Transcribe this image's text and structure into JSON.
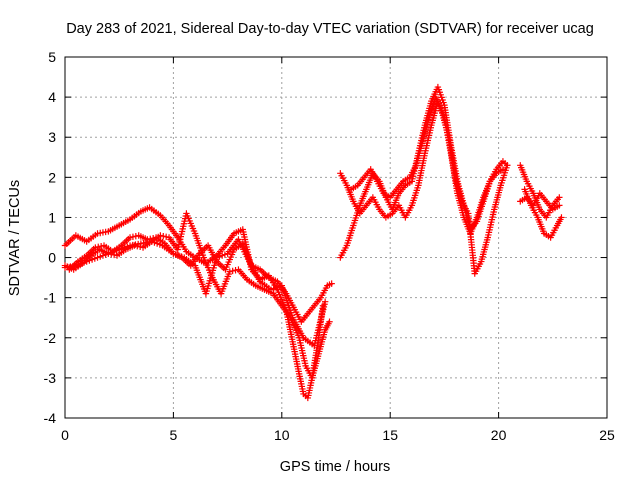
{
  "chart_data": {
    "type": "scatter",
    "title": "Day 283 of 2021, Sidereal Day-to-day VTEC variation (SDTVAR) for receiver ucag",
    "xlabel": "GPS time / hours",
    "ylabel": "SDTVAR / TECUs",
    "xlim": [
      0,
      25
    ],
    "ylim": [
      -4,
      5
    ],
    "xticks": [
      0,
      5,
      10,
      15,
      20,
      25
    ],
    "yticks": [
      -4,
      -3,
      -2,
      -1,
      0,
      1,
      2,
      3,
      4,
      5
    ],
    "grid": true,
    "marker": "plus",
    "color": "#ff0000",
    "series": [
      {
        "x": [
          0.0,
          0.5,
          1.0,
          1.5,
          2.0,
          2.5,
          3.0,
          3.5,
          3.9,
          4.4,
          4.8,
          5.2,
          5.6,
          6.0,
          6.5,
          7.0,
          7.4,
          7.8,
          8.2,
          8.6,
          9.0,
          9.4,
          9.8,
          10.2,
          10.5,
          10.8,
          11.0,
          11.2,
          11.4,
          11.7,
          11.9
        ],
        "y": [
          0.3,
          0.55,
          0.4,
          0.6,
          0.65,
          0.8,
          0.95,
          1.15,
          1.25,
          1.05,
          0.8,
          0.5,
          0.15,
          0.0,
          -0.15,
          0.05,
          0.3,
          0.6,
          0.7,
          -0.3,
          -0.55,
          -0.45,
          -0.8,
          -1.3,
          -2.1,
          -2.9,
          -3.4,
          -3.5,
          -3.0,
          -2.0,
          -1.2
        ]
      },
      {
        "x": [
          0.0,
          0.4,
          0.8,
          1.2,
          1.6,
          2.0,
          2.4,
          2.8,
          3.2,
          3.6,
          4.0,
          4.4,
          4.8,
          5.2,
          5.6,
          6.0,
          6.4,
          6.8,
          7.2,
          7.6,
          8.0,
          8.4,
          8.8,
          9.2,
          9.6,
          10.0,
          10.4,
          10.8,
          11.1,
          11.4,
          11.7,
          12.0,
          12.2
        ],
        "y": [
          -0.2,
          -0.3,
          -0.15,
          0.05,
          0.2,
          0.1,
          0.05,
          0.2,
          0.3,
          0.25,
          0.4,
          0.55,
          0.5,
          0.2,
          1.1,
          0.6,
          0.0,
          -0.5,
          -0.9,
          -0.35,
          -0.3,
          -0.55,
          -0.7,
          -0.8,
          -0.9,
          -1.2,
          -1.5,
          -2.0,
          -2.7,
          -3.0,
          -2.4,
          -1.8,
          -1.6
        ]
      },
      {
        "x": [
          0.2,
          0.6,
          1.0,
          1.4,
          1.8,
          2.2,
          2.6,
          3.0,
          3.4,
          3.8,
          4.2,
          4.6,
          5.0,
          5.4,
          5.8,
          6.2,
          6.6,
          7.0,
          7.4,
          7.8,
          8.2,
          8.6,
          9.0,
          9.4,
          9.8,
          10.2,
          10.6,
          10.9,
          11.2,
          11.5,
          11.8,
          12.1,
          12.3
        ],
        "y": [
          -0.3,
          -0.1,
          0.05,
          0.25,
          0.3,
          0.15,
          0.3,
          0.5,
          0.55,
          0.45,
          0.5,
          0.35,
          0.1,
          0.0,
          -0.2,
          0.1,
          0.3,
          -0.1,
          -0.3,
          0.2,
          0.35,
          -0.2,
          -0.3,
          -0.5,
          -0.6,
          -0.9,
          -1.3,
          -1.6,
          -1.4,
          -1.2,
          -1.0,
          -0.7,
          -0.65
        ]
      },
      {
        "x": [
          0.0,
          0.5,
          1.0,
          1.5,
          2.0,
          2.5,
          3.0,
          3.5,
          4.0,
          4.5,
          5.0,
          5.5,
          6.0,
          6.5,
          7.0,
          7.5,
          8.0,
          8.5,
          9.0,
          9.5,
          10.0,
          10.5,
          11.0,
          11.5,
          12.0
        ],
        "y": [
          -0.25,
          -0.2,
          -0.1,
          0.0,
          0.1,
          0.2,
          0.3,
          0.35,
          0.4,
          0.3,
          0.1,
          0.0,
          -0.2,
          -0.9,
          0.0,
          0.1,
          0.45,
          -0.1,
          -0.6,
          -0.8,
          -0.7,
          -1.5,
          -2.0,
          -2.2,
          -1.1
        ]
      },
      {
        "x": [
          12.7,
          13.0,
          13.3,
          13.6,
          13.9,
          14.2,
          14.5,
          14.8,
          15.1,
          15.4,
          15.7,
          16.0,
          16.3,
          16.6,
          16.9,
          17.2,
          17.5,
          17.8,
          18.1,
          18.4,
          18.7,
          19.0,
          19.3,
          19.6,
          19.9,
          20.2,
          20.4
        ],
        "y": [
          0.0,
          0.3,
          0.8,
          1.3,
          1.7,
          2.1,
          1.9,
          1.5,
          1.2,
          1.6,
          1.8,
          1.9,
          2.6,
          3.3,
          3.9,
          4.25,
          3.8,
          2.8,
          1.9,
          1.3,
          0.7,
          0.9,
          1.4,
          1.9,
          2.2,
          2.4,
          2.3
        ]
      },
      {
        "x": [
          12.7,
          13.0,
          13.3,
          13.6,
          13.9,
          14.2,
          14.5,
          14.8,
          15.1,
          15.4,
          15.7,
          16.0,
          16.3,
          16.6,
          16.9,
          17.2,
          17.5,
          17.8,
          18.1,
          18.4,
          18.7,
          19.0,
          19.3,
          19.6,
          19.9,
          20.2
        ],
        "y": [
          2.1,
          1.8,
          1.4,
          1.1,
          1.3,
          1.5,
          1.2,
          1.0,
          1.1,
          1.3,
          1.0,
          1.3,
          1.8,
          2.6,
          3.3,
          3.9,
          3.5,
          2.6,
          1.6,
          1.0,
          0.6,
          1.0,
          1.5,
          1.9,
          2.1,
          2.2
        ]
      },
      {
        "x": [
          13.2,
          13.5,
          13.8,
          14.1,
          14.4,
          14.7,
          15.0,
          15.3,
          15.6,
          15.9,
          16.2,
          16.5,
          16.8,
          17.1,
          17.4,
          17.7,
          18.0,
          18.3,
          18.6,
          18.9,
          19.2,
          19.5,
          19.8,
          20.1,
          20.4
        ],
        "y": [
          1.7,
          1.8,
          2.0,
          2.2,
          1.9,
          1.6,
          1.5,
          1.7,
          1.9,
          2.0,
          2.3,
          2.9,
          3.5,
          4.0,
          3.6,
          3.0,
          2.0,
          1.4,
          1.1,
          -0.4,
          -0.1,
          0.5,
          1.2,
          1.8,
          2.3
        ]
      },
      {
        "x": [
          21.0,
          21.3,
          21.6,
          21.9,
          22.2,
          22.5,
          22.8
        ],
        "y": [
          2.3,
          1.9,
          1.6,
          1.2,
          1.0,
          1.3,
          1.5
        ]
      },
      {
        "x": [
          21.0,
          21.3,
          21.6,
          21.9,
          22.2,
          22.5,
          22.8
        ],
        "y": [
          1.4,
          1.5,
          1.3,
          1.6,
          1.4,
          1.2,
          1.3
        ]
      },
      {
        "x": [
          21.2,
          21.5,
          21.8,
          22.1,
          22.4,
          22.7,
          22.9
        ],
        "y": [
          1.7,
          1.3,
          1.0,
          0.6,
          0.5,
          0.8,
          1.0
        ]
      }
    ]
  }
}
